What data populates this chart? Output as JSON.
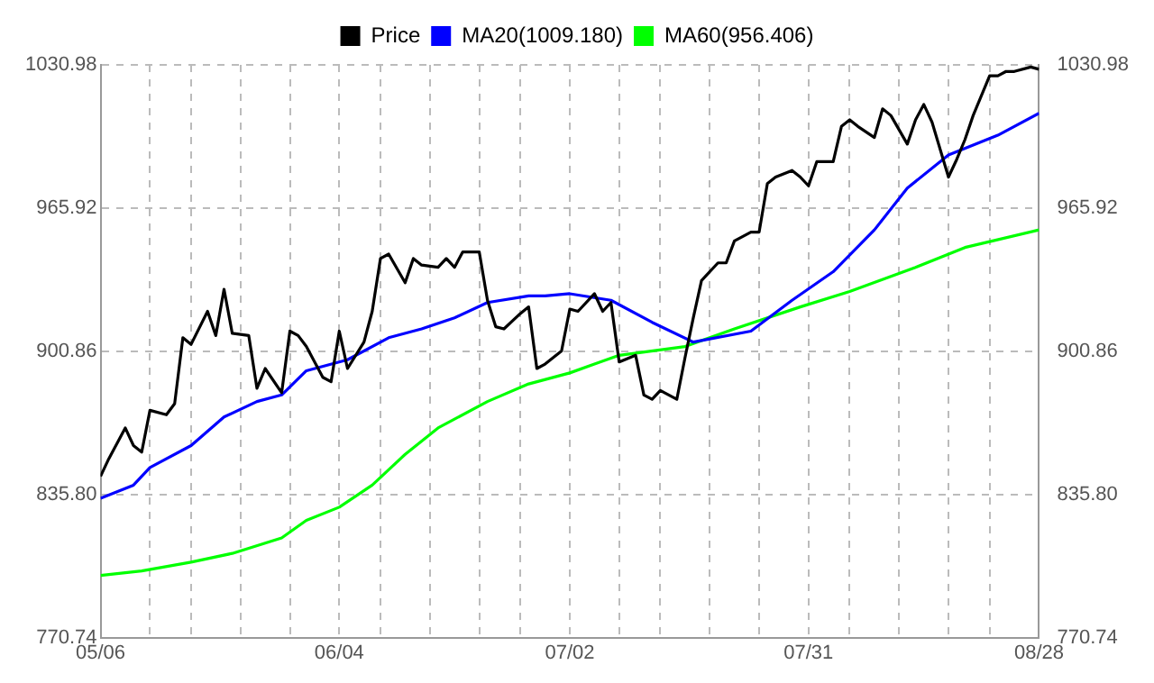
{
  "chart_data": {
    "type": "line",
    "xlim": [
      "--05-06",
      "--08-28"
    ],
    "xticks": [
      {
        "value": "--05-06",
        "label": "05/06"
      },
      {
        "value": "--05-12",
        "label": null
      },
      {
        "value": "--05-17",
        "label": null
      },
      {
        "value": "--05-23",
        "label": null
      },
      {
        "value": "--05-29",
        "label": null
      },
      {
        "value": "--06-04",
        "label": "06/04"
      },
      {
        "value": "--06-09",
        "label": null
      },
      {
        "value": "--06-15",
        "label": null
      },
      {
        "value": "--06-21",
        "label": null
      },
      {
        "value": "--06-26",
        "label": null
      },
      {
        "value": "--07-02",
        "label": "07/02"
      },
      {
        "value": "--07-08",
        "label": null
      },
      {
        "value": "--07-13",
        "label": null
      },
      {
        "value": "--07-19",
        "label": null
      },
      {
        "value": "--07-25",
        "label": null
      },
      {
        "value": "--07-31",
        "label": "07/31"
      },
      {
        "value": "--08-05",
        "label": null
      },
      {
        "value": "--08-11",
        "label": null
      },
      {
        "value": "--08-17",
        "label": null
      },
      {
        "value": "--08-22",
        "label": null
      },
      {
        "value": "--08-28",
        "label": "08/28"
      }
    ],
    "ylim": [
      770.74,
      1030.98
    ],
    "yticks": [
      770.74,
      {
        "value": 835.8,
        "label": "835.80"
      },
      900.86,
      965.92,
      1030.98
    ],
    "y2lim": [
      770.74,
      1030.98
    ],
    "y2ticks": [
      770.74,
      {
        "value": 835.8,
        "label": "835.80"
      },
      900.86,
      965.92,
      1030.98
    ],
    "grid": true,
    "legend": "top",
    "marker": "none",
    "line_style": "solid",
    "series": [
      {
        "name": "Price",
        "color": "#000000",
        "x": [
          "--05-06",
          "--05-07",
          "--05-09",
          "--05-10",
          "--05-11",
          "--05-12",
          "--05-14",
          "--05-15",
          "--05-16",
          "--05-17",
          "--05-19",
          "--05-20",
          "--05-21",
          "--05-22",
          "--05-24",
          "--05-25",
          "--05-26",
          "--05-28",
          "--05-29",
          "--05-30",
          "--05-31",
          "--06-02",
          "--06-03",
          "--06-04",
          "--06-05",
          "--06-07",
          "--06-08",
          "--06-09",
          "--06-10",
          "--06-12",
          "--06-13",
          "--06-14",
          "--06-16",
          "--06-17",
          "--06-18",
          "--06-19",
          "--06-21",
          "--06-22",
          "--06-23",
          "--06-24",
          "--06-26",
          "--06-27",
          "--06-28",
          "--06-29",
          "--07-01",
          "--07-02",
          "--07-03",
          "--07-05",
          "--07-06",
          "--07-07",
          "--07-08",
          "--07-10",
          "--07-11",
          "--07-12",
          "--07-13",
          "--07-15",
          "--07-16",
          "--07-17",
          "--07-18",
          "--07-20",
          "--07-21",
          "--07-22",
          "--07-24",
          "--07-25",
          "--07-26",
          "--07-27",
          "--07-29",
          "--07-30",
          "--07-31",
          "--08-01",
          "--08-03",
          "--08-04",
          "--08-05",
          "--08-06",
          "--08-08",
          "--08-09",
          "--08-10",
          "--08-12",
          "--08-13",
          "--08-14",
          "--08-15",
          "--08-17",
          "--08-18",
          "--08-19",
          "--08-20",
          "--08-22",
          "--08-23",
          "--08-24",
          "--08-25",
          "--08-27",
          "--08-28"
        ],
        "values": [
          844,
          852,
          866,
          858,
          855,
          874,
          872,
          877,
          907,
          904,
          919,
          908,
          929,
          909,
          908,
          884,
          893,
          882,
          910,
          908,
          903,
          889,
          887,
          910,
          893,
          905,
          919,
          943,
          945,
          932,
          943,
          940,
          939,
          943,
          939,
          946,
          946,
          924,
          912,
          911,
          918,
          921,
          893,
          895,
          901,
          920,
          919,
          927,
          919,
          923,
          896,
          899,
          881,
          879,
          883,
          879,
          898,
          916,
          933,
          941,
          941,
          951,
          955,
          955,
          977,
          980,
          983,
          980,
          976,
          987,
          987,
          1003,
          1006,
          1003,
          998,
          1011,
          1008,
          995,
          1006,
          1013,
          1005,
          980,
          988,
          997,
          1008,
          1026,
          1026,
          1028,
          1028,
          1030,
          1029
        ]
      },
      {
        "name": "MA20(1009.180)",
        "color": "#0000ff",
        "x": [
          "--05-06",
          "--05-10",
          "--05-12",
          "--05-17",
          "--05-21",
          "--05-25",
          "--05-28",
          "--05-31",
          "--06-05",
          "--06-10",
          "--06-14",
          "--06-18",
          "--06-22",
          "--06-27",
          "--06-29",
          "--07-02",
          "--07-07",
          "--07-12",
          "--07-17",
          "--07-24",
          "--07-29",
          "--08-03",
          "--08-08",
          "--08-12",
          "--08-17",
          "--08-23",
          "--08-28"
        ],
        "values": [
          834,
          840,
          848,
          858,
          871,
          878,
          881,
          892,
          897,
          907,
          911,
          916,
          923,
          926,
          926,
          927,
          924,
          914,
          905,
          910,
          924,
          937,
          956,
          975,
          990,
          999,
          1009
        ]
      },
      {
        "name": "MA60(956.406)",
        "color": "#00ff00",
        "x": [
          "--05-06",
          "--05-11",
          "--05-17",
          "--05-22",
          "--05-28",
          "--05-31",
          "--06-04",
          "--06-08",
          "--06-12",
          "--06-16",
          "--06-22",
          "--06-27",
          "--07-02",
          "--07-05",
          "--07-08",
          "--07-16",
          "--07-22",
          "--07-30",
          "--08-05",
          "--08-13",
          "--08-19",
          "--08-28"
        ],
        "values": [
          799,
          801,
          805,
          809,
          816,
          824,
          830,
          840,
          854,
          866,
          878,
          886,
          891,
          895,
          899,
          903,
          911,
          921,
          928,
          939,
          948,
          956
        ]
      }
    ]
  }
}
